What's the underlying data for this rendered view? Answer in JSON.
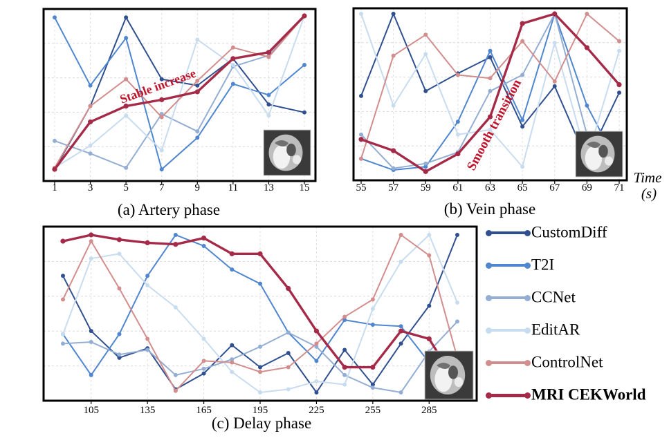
{
  "time_label": [
    "Time",
    "(s)"
  ],
  "legend": [
    {
      "name": "CustomDiff",
      "color": "#2f4f8f",
      "bold": false
    },
    {
      "name": "T2I",
      "color": "#4f86cf",
      "bold": false
    },
    {
      "name": "CCNet",
      "color": "#93aed2",
      "bold": false
    },
    {
      "name": "EditAR",
      "color": "#c8dcf0",
      "bold": false
    },
    {
      "name": "ControlNet",
      "color": "#d28d8d",
      "bold": false
    },
    {
      "name": "MRI CEKWorld",
      "color": "#a52a48",
      "bold": true
    }
  ],
  "chart_data": [
    {
      "type": "line",
      "title": "(a) Artery phase",
      "x": [
        1,
        3,
        5,
        7,
        9,
        11,
        13,
        15
      ],
      "xticks": [
        "1",
        "3",
        "5",
        "7",
        "9",
        "11",
        "13",
        "15"
      ],
      "ylim": [
        0,
        10
      ],
      "grid": true,
      "annotation": {
        "text": "Stable increase",
        "color": "#c0142c"
      },
      "series": [
        {
          "name": "CustomDiff",
          "color": "#2f4f8f",
          "values": [
            0.3,
            4.3,
            9.9,
            6.0,
            5.6,
            7.3,
            4.4,
            3.9
          ]
        },
        {
          "name": "T2I",
          "color": "#4f86cf",
          "values": [
            9.9,
            5.6,
            8.6,
            0.3,
            2.3,
            5.7,
            5.0,
            6.9
          ]
        },
        {
          "name": "CCNet",
          "color": "#93aed2",
          "values": [
            2.1,
            1.3,
            0.4,
            3.8,
            2.7,
            6.8,
            7.5,
            10.0
          ]
        },
        {
          "name": "EditAR",
          "color": "#c8dcf0",
          "values": [
            0.4,
            1.8,
            3.7,
            1.5,
            8.5,
            6.9,
            3.7,
            10.0
          ]
        },
        {
          "name": "ControlNet",
          "color": "#d28d8d",
          "values": [
            0.4,
            4.3,
            6.0,
            3.6,
            5.9,
            8.0,
            7.4,
            10.0
          ]
        },
        {
          "name": "MRI CEKWorld",
          "color": "#a52a48",
          "values": [
            0.3,
            3.3,
            4.3,
            4.7,
            5.2,
            7.3,
            7.7,
            10.0
          ]
        }
      ]
    },
    {
      "type": "line",
      "title": "(b) Vein phase",
      "x": [
        55,
        57,
        59,
        61,
        63,
        65,
        67,
        69,
        71
      ],
      "xticks": [
        "55",
        "57",
        "59",
        "61",
        "63",
        "65",
        "67",
        "69",
        "71"
      ],
      "ylim": [
        0,
        10
      ],
      "grid": true,
      "annotation": {
        "text": "Smooth transition",
        "color": "#c0142c"
      },
      "series": [
        {
          "name": "CustomDiff",
          "color": "#2f4f8f",
          "values": [
            4.9,
            10.0,
            5.2,
            6.3,
            7.3,
            3.0,
            5.5,
            0.9,
            5.1
          ]
        },
        {
          "name": "T2I",
          "color": "#4f86cf",
          "values": [
            1.0,
            0.3,
            0.5,
            3.3,
            7.7,
            3.4,
            10.0,
            4.3,
            0.5
          ]
        },
        {
          "name": "CCNet",
          "color": "#93aed2",
          "values": [
            2.5,
            0.4,
            0.7,
            1.4,
            5.2,
            6.2,
            10.0,
            2.5,
            0.6
          ]
        },
        {
          "name": "EditAR",
          "color": "#c8dcf0",
          "values": [
            10.0,
            4.3,
            7.5,
            2.5,
            2.8,
            0.5,
            8.2,
            1.0,
            7.7
          ]
        },
        {
          "name": "ControlNet",
          "color": "#d28d8d",
          "values": [
            1.0,
            7.4,
            8.7,
            6.2,
            6.0,
            8.3,
            5.8,
            10.0,
            8.3
          ]
        },
        {
          "name": "MRI CEKWorld",
          "color": "#a52a48",
          "values": [
            2.2,
            1.5,
            0.2,
            1.3,
            3.6,
            9.4,
            10.0,
            7.9,
            5.6
          ]
        }
      ]
    },
    {
      "type": "line",
      "title": "(c) Delay phase",
      "x": [
        90,
        105,
        120,
        135,
        150,
        165,
        180,
        195,
        210,
        225,
        240,
        255,
        270,
        285,
        300
      ],
      "xticks": [
        "105",
        "135",
        "165",
        "195",
        "225",
        "255",
        "285"
      ],
      "ylim": [
        0,
        10
      ],
      "grid": true,
      "series": [
        {
          "name": "CustomDiff",
          "color": "#2f4f8f",
          "values": [
            7.4,
            3.9,
            2.2,
            2.8,
            0.2,
            1.2,
            3.0,
            1.6,
            2.5,
            0.0,
            2.7,
            0.5,
            3.1,
            5.5,
            10.0
          ]
        },
        {
          "name": "T2I",
          "color": "#4f86cf",
          "values": [
            3.7,
            1.1,
            3.7,
            7.4,
            10.0,
            9.3,
            7.8,
            6.9,
            3.8,
            2.0,
            4.6,
            4.3,
            4.2,
            1.9,
            1.0
          ]
        },
        {
          "name": "CCNet",
          "color": "#93aed2",
          "values": [
            3.1,
            3.2,
            2.4,
            2.7,
            1.1,
            1.5,
            2.1,
            2.9,
            3.8,
            2.9,
            1.1,
            0.3,
            0.0,
            2.6,
            4.5
          ]
        },
        {
          "name": "EditAR",
          "color": "#c8dcf0",
          "values": [
            3.7,
            8.5,
            8.8,
            6.8,
            5.4,
            3.4,
            1.3,
            0.0,
            0.2,
            0.7,
            0.5,
            5.3,
            8.3,
            10.0,
            5.7
          ]
        },
        {
          "name": "ControlNet",
          "color": "#d28d8d",
          "values": [
            5.9,
            9.6,
            6.6,
            3.4,
            0.1,
            2.0,
            1.9,
            1.3,
            1.6,
            3.1,
            4.8,
            5.9,
            10.0,
            8.7,
            2.2
          ]
        },
        {
          "name": "MRI CEKWorld",
          "color": "#a52a48",
          "values": [
            9.6,
            10.0,
            9.7,
            9.5,
            9.4,
            9.8,
            8.8,
            8.8,
            6.6,
            3.9,
            1.6,
            1.6,
            3.9,
            3.4,
            0.5
          ]
        }
      ]
    }
  ]
}
